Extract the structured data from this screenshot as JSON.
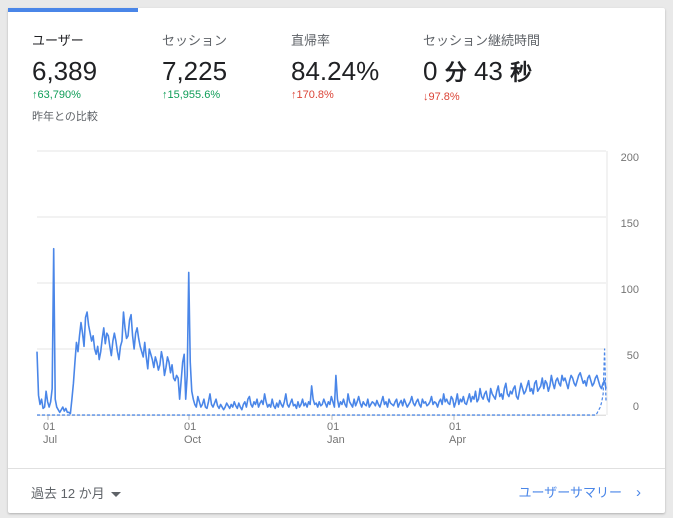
{
  "metrics": [
    {
      "label": "ユーザー",
      "value": "6,389",
      "delta": "63,790%",
      "direction": "up"
    },
    {
      "label": "セッション",
      "value": "7,225",
      "delta": "15,955.6%",
      "direction": "up"
    },
    {
      "label": "直帰率",
      "value": "84.24%",
      "delta": "170.8%",
      "direction": "up"
    },
    {
      "label": "セッション継続時間",
      "value_min": "0",
      "unit_min": "分",
      "value_sec": "43",
      "unit_sec": "秒",
      "delta": "97.8%",
      "direction": "down"
    }
  ],
  "arrows": {
    "up": "↑",
    "down": "↓"
  },
  "compare_note": "昨年との比較",
  "colors": {
    "accent": "#4a86e8",
    "up": "#0f9d58",
    "down": "#db4437",
    "grid": "#e6e6e6"
  },
  "chart_data": {
    "type": "line",
    "y_ticks": [
      "200",
      "150",
      "100",
      "50",
      "0"
    ],
    "ylim": [
      0,
      200
    ],
    "x_ticks": [
      {
        "day": "01",
        "month": "Jul"
      },
      {
        "day": "01",
        "month": "Oct"
      },
      {
        "day": "01",
        "month": "Jan"
      },
      {
        "day": "01",
        "month": "Apr"
      }
    ],
    "series": [
      {
        "style": "solid",
        "values": [
          48,
          15,
          8,
          12,
          5,
          6,
          18,
          10,
          6,
          10,
          20,
          126,
          12,
          6,
          4,
          2,
          4,
          6,
          3,
          5,
          2,
          2,
          1,
          12,
          24,
          40,
          55,
          48,
          60,
          70,
          62,
          52,
          74,
          78,
          68,
          62,
          56,
          60,
          50,
          46,
          52,
          42,
          48,
          58,
          66,
          54,
          62,
          60,
          52,
          45,
          56,
          62,
          56,
          48,
          42,
          52,
          56,
          78,
          66,
          58,
          60,
          72,
          76,
          60,
          50,
          62,
          66,
          58,
          52,
          48,
          44,
          55,
          44,
          35,
          50,
          46,
          42,
          36,
          44,
          40,
          34,
          38,
          48,
          42,
          30,
          36,
          44,
          40,
          32,
          38,
          28,
          26,
          30,
          28,
          12,
          26,
          40,
          46,
          12,
          30,
          108,
          40,
          18,
          12,
          8,
          6,
          14,
          10,
          6,
          8,
          12,
          6,
          5,
          10,
          16,
          8,
          6,
          9,
          12,
          7,
          5,
          8,
          6,
          4,
          6,
          9,
          7,
          5,
          8,
          6,
          10,
          7,
          5,
          9,
          6,
          4,
          8,
          10,
          6,
          12,
          14,
          8,
          6,
          10,
          8,
          12,
          6,
          9,
          11,
          8,
          16,
          10,
          6,
          8,
          6,
          12,
          7,
          5,
          9,
          6,
          11,
          8,
          6,
          10,
          16,
          8,
          6,
          9,
          12,
          7,
          8,
          5,
          10,
          6,
          8,
          12,
          7,
          9,
          6,
          10,
          8,
          22,
          12,
          8,
          9,
          6,
          10,
          7,
          8,
          12,
          9,
          6,
          10,
          8,
          14,
          10,
          6,
          30,
          12,
          6,
          10,
          8,
          12,
          8,
          6,
          16,
          10,
          8,
          6,
          12,
          7,
          10,
          14,
          9,
          6,
          10,
          8,
          7,
          12,
          6,
          8,
          10,
          9,
          7,
          11,
          8,
          6,
          10,
          14,
          8,
          10,
          6,
          12,
          9,
          8,
          7,
          10,
          12,
          6,
          9,
          11,
          7,
          12,
          9,
          6,
          8,
          10,
          14,
          9,
          7,
          10,
          12,
          8,
          6,
          12,
          9,
          10,
          7,
          8,
          10,
          14,
          8,
          10,
          9,
          6,
          10,
          12,
          8,
          16,
          10,
          12,
          9,
          8,
          14,
          12,
          6,
          10,
          16,
          8,
          12,
          10,
          14,
          9,
          8,
          12,
          16,
          10,
          14,
          12,
          18,
          10,
          12,
          20,
          14,
          12,
          16,
          18,
          12,
          10,
          20,
          16,
          14,
          12,
          18,
          22,
          14,
          16,
          12,
          20,
          24,
          16,
          14,
          18,
          16,
          20,
          22,
          14,
          12,
          18,
          24,
          20,
          16,
          18,
          22,
          26,
          18,
          20,
          16,
          24,
          26,
          18,
          20,
          22,
          28,
          20,
          26,
          24,
          18,
          22,
          30,
          24,
          20,
          26,
          28,
          24,
          22,
          30,
          26,
          28,
          24,
          20,
          26,
          30,
          28,
          24,
          22,
          26,
          30,
          32,
          28,
          24,
          26,
          22,
          28,
          30,
          26,
          22,
          24,
          28,
          30,
          26,
          22,
          20,
          24,
          26,
          20
        ]
      },
      {
        "style": "dashed",
        "values": [
          0,
          0,
          0,
          0,
          0,
          0,
          0,
          0,
          0,
          0,
          0,
          0,
          0,
          0,
          0,
          0,
          0,
          0,
          0,
          0,
          0,
          0,
          0,
          0,
          0,
          0,
          0,
          0,
          0,
          0,
          0,
          0,
          0,
          0,
          0,
          0,
          0,
          0,
          0,
          0,
          0,
          0,
          0,
          0,
          0,
          0,
          0,
          0,
          0,
          0,
          0,
          0,
          0,
          0,
          0,
          0,
          0,
          0,
          0,
          0,
          0,
          0,
          0,
          0,
          0,
          0,
          0,
          0,
          0,
          0,
          0,
          0,
          0,
          0,
          0,
          0,
          0,
          0,
          0,
          0,
          0,
          0,
          0,
          0,
          0,
          0,
          0,
          0,
          0,
          0,
          0,
          0,
          0,
          0,
          0,
          0,
          0,
          0,
          0,
          0,
          0,
          0,
          0,
          0,
          0,
          0,
          0,
          0,
          0,
          0,
          0,
          0,
          0,
          0,
          0,
          0,
          0,
          0,
          0,
          0,
          0,
          0,
          0,
          0,
          0,
          0,
          0,
          0,
          0,
          0,
          0,
          0,
          0,
          0,
          0,
          0,
          0,
          0,
          0,
          0,
          0,
          0,
          0,
          0,
          0,
          0,
          0,
          0,
          0,
          0,
          0,
          0,
          0,
          0,
          0,
          0,
          0,
          0,
          0,
          0,
          0,
          0,
          0,
          0,
          0,
          0,
          0,
          0,
          0,
          0,
          0,
          0,
          0,
          0,
          0,
          0,
          0,
          0,
          0,
          0,
          0,
          0,
          0,
          0,
          0,
          0,
          0,
          0,
          0,
          0,
          0,
          0,
          0,
          0,
          0,
          0,
          0,
          0,
          0,
          0,
          0,
          0,
          0,
          0,
          0,
          0,
          0,
          0,
          0,
          0,
          0,
          0,
          0,
          0,
          0,
          0,
          0,
          0,
          0,
          0,
          0,
          0,
          0,
          0,
          0,
          0,
          0,
          0,
          0,
          0,
          0,
          0,
          0,
          0,
          0,
          0,
          0,
          0,
          0,
          0,
          0,
          0,
          0,
          0,
          0,
          0,
          0,
          0,
          0,
          0,
          0,
          0,
          0,
          0,
          0,
          0,
          0,
          0,
          0,
          0,
          0,
          0,
          0,
          0,
          0,
          0,
          0,
          0,
          0,
          0,
          0,
          0,
          0,
          0,
          0,
          0,
          0,
          0,
          0,
          0,
          0,
          0,
          0,
          0,
          0,
          0,
          0,
          0,
          0,
          0,
          0,
          0,
          0,
          0,
          0,
          0,
          0,
          0,
          0,
          0,
          0,
          0,
          0,
          0,
          0,
          0,
          0,
          0,
          0,
          0,
          0,
          0,
          0,
          0,
          0,
          0,
          0,
          0,
          0,
          0,
          0,
          0,
          0,
          0,
          0,
          0,
          0,
          0,
          0,
          0,
          0,
          0,
          0,
          0,
          0,
          0,
          0,
          0,
          0,
          0,
          0,
          0,
          0,
          0,
          0,
          0,
          0,
          0,
          0,
          0,
          0,
          0,
          0,
          0,
          0,
          0,
          0,
          0,
          0,
          0,
          0,
          0,
          0,
          0,
          0,
          0,
          0,
          0,
          0,
          0,
          0,
          0,
          0,
          0,
          0,
          0,
          0,
          0,
          0,
          0,
          0,
          0,
          0,
          0,
          0,
          0,
          0,
          0,
          0,
          0,
          0,
          0,
          0,
          0,
          2,
          4,
          6,
          10,
          16,
          50,
          10
        ]
      }
    ]
  },
  "footer": {
    "date_range": "過去 12 か月",
    "summary_link": "ユーザーサマリー",
    "chevron": "›"
  }
}
